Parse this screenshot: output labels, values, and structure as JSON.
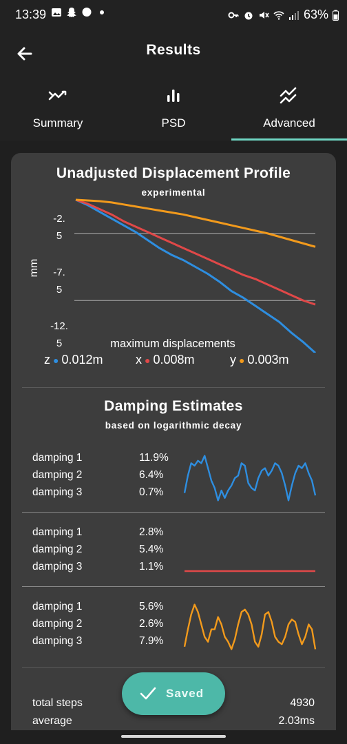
{
  "status_bar": {
    "time": "13:39",
    "battery": "63%",
    "left_icons": [
      "gallery-icon",
      "snapchat-icon",
      "messenger-icon",
      "dot-icon"
    ],
    "right_icons": [
      "key-icon",
      "alarm-icon",
      "mute-icon",
      "wifi-icon",
      "signal-icon",
      "battery-icon"
    ]
  },
  "app_bar": {
    "title": "Results",
    "back_icon": "arrow-back-icon"
  },
  "tabs": [
    {
      "label": "Summary",
      "icon": "trending-icon",
      "selected": false
    },
    {
      "label": "PSD",
      "icon": "bar-chart-icon",
      "selected": false
    },
    {
      "label": "Advanced",
      "icon": "double-trend-icon",
      "selected": true
    }
  ],
  "colors": {
    "accent": "#6fd6c3",
    "z": "#2e8ee0",
    "x": "#e04848",
    "y": "#f29a1c",
    "toast": "#4db8a8"
  },
  "profile": {
    "title": "Unadjusted Displacement Profile",
    "subtitle": "experimental",
    "chart_data": {
      "type": "line",
      "ylabel": "mm",
      "ytick_labels": [
        "-2.\n5",
        "-7.\n5",
        "-12.\n5"
      ],
      "ylim": [
        -12.5,
        0
      ],
      "x": [
        0,
        0.05,
        0.1,
        0.15,
        0.2,
        0.25,
        0.3,
        0.35,
        0.4,
        0.45,
        0.5,
        0.55,
        0.6,
        0.65,
        0.7,
        0.75,
        0.8,
        0.85,
        0.9,
        0.95,
        1
      ],
      "series": [
        {
          "name": "z",
          "values": [
            0,
            -0.4,
            -0.9,
            -1.4,
            -1.9,
            -2.4,
            -3.0,
            -3.6,
            -4.1,
            -4.5,
            -5.0,
            -5.5,
            -6.1,
            -6.8,
            -7.3,
            -7.9,
            -8.5,
            -9.1,
            -9.9,
            -10.6,
            -11.4
          ]
        },
        {
          "name": "x",
          "values": [
            0,
            -0.3,
            -0.7,
            -1.1,
            -1.6,
            -2.0,
            -2.4,
            -2.8,
            -3.2,
            -3.6,
            -4.0,
            -4.4,
            -4.8,
            -5.2,
            -5.6,
            -5.9,
            -6.3,
            -6.7,
            -7.1,
            -7.5,
            -7.8
          ]
        },
        {
          "name": "y",
          "values": [
            0,
            -0.05,
            -0.1,
            -0.2,
            -0.35,
            -0.5,
            -0.65,
            -0.8,
            -0.95,
            -1.1,
            -1.3,
            -1.5,
            -1.7,
            -1.9,
            -2.1,
            -2.3,
            -2.5,
            -2.75,
            -3.0,
            -3.25,
            -3.5
          ]
        }
      ],
      "grid_y": [
        -2.5,
        -7.5
      ]
    },
    "max_label": "maximum displacements",
    "max_values": [
      {
        "axis": "z",
        "value": "0.012m"
      },
      {
        "axis": "x",
        "value": "0.008m"
      },
      {
        "axis": "y",
        "value": "0.003m"
      }
    ]
  },
  "damping": {
    "title": "Damping Estimates",
    "subtitle": "based on logarithmic decay",
    "groups": [
      {
        "axis": "z",
        "rows": [
          {
            "label": "damping 1",
            "value": "11.9%"
          },
          {
            "label": "damping 2",
            "value": "6.4%"
          },
          {
            "label": "damping 3",
            "value": "0.7%"
          }
        ],
        "signal": [
          0.2,
          0.55,
          0.8,
          0.75,
          0.85,
          0.8,
          0.95,
          0.7,
          0.45,
          0.3,
          0.05,
          0.25,
          0.1,
          0.25,
          0.35,
          0.5,
          0.55,
          0.8,
          0.75,
          0.4,
          0.3,
          0.25,
          0.5,
          0.65,
          0.7,
          0.55,
          0.65,
          0.8,
          0.75,
          0.6,
          0.35,
          0.05,
          0.35,
          0.6,
          0.75,
          0.7,
          0.8,
          0.6,
          0.45,
          0.15
        ]
      },
      {
        "axis": "x",
        "rows": [
          {
            "label": "damping 1",
            "value": "2.8%"
          },
          {
            "label": "damping 2",
            "value": "5.4%"
          },
          {
            "label": "damping 3",
            "value": "1.1%"
          }
        ],
        "signal": [
          0.5,
          0.5,
          0.5,
          0.5,
          0.5,
          0.5,
          0.5,
          0.5,
          0.5,
          0.5
        ]
      },
      {
        "axis": "y",
        "rows": [
          {
            "label": "damping 1",
            "value": "5.6%"
          },
          {
            "label": "damping 2",
            "value": "2.6%"
          },
          {
            "label": "damping 3",
            "value": "7.9%"
          }
        ],
        "signal": [
          0.1,
          0.45,
          0.75,
          0.95,
          0.8,
          0.55,
          0.3,
          0.2,
          0.45,
          0.45,
          0.7,
          0.55,
          0.3,
          0.2,
          0.05,
          0.25,
          0.55,
          0.8,
          0.85,
          0.75,
          0.55,
          0.2,
          0.1,
          0.35,
          0.75,
          0.8,
          0.6,
          0.3,
          0.2,
          0.15,
          0.3,
          0.55,
          0.65,
          0.6,
          0.35,
          0.15,
          0.3,
          0.55,
          0.45,
          0.05
        ]
      }
    ]
  },
  "stats": {
    "rows": [
      {
        "label": "total steps",
        "value": "4930"
      },
      {
        "label": "average",
        "value": "2.03ms"
      }
    ]
  },
  "toast": {
    "label": "Saved",
    "icon": "check-icon"
  }
}
